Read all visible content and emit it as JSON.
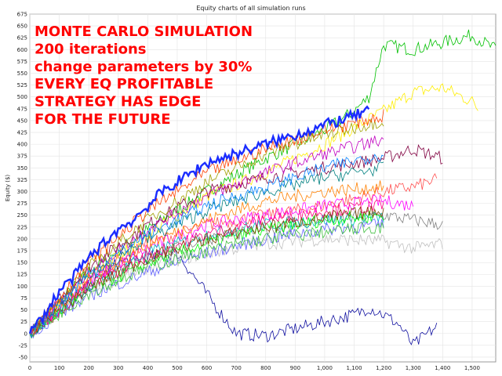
{
  "chart_data": {
    "type": "line",
    "title": "Equity charts of all simulation runs",
    "ylabel": "Equity ($)",
    "xlabel": "",
    "xlim": [
      0,
      1580
    ],
    "ylim": [
      -60,
      675
    ],
    "xticks": [
      0,
      100,
      200,
      300,
      400,
      500,
      600,
      700,
      800,
      900,
      1000,
      1100,
      1200,
      1300,
      1400,
      1500
    ],
    "xtick_labels": [
      "0",
      "100",
      "200",
      "300",
      "400",
      "500",
      "600",
      "700",
      "800",
      "900",
      "1,000",
      "1,100",
      "1,200",
      "1,300",
      "1,400",
      "1,500"
    ],
    "yticks": [
      -50,
      -25,
      0,
      25,
      50,
      75,
      100,
      125,
      150,
      175,
      200,
      225,
      250,
      275,
      300,
      325,
      350,
      375,
      400,
      425,
      450,
      475,
      500,
      525,
      550,
      575,
      600,
      625,
      650,
      675
    ],
    "grid": true,
    "legend": "none",
    "annotation_lines": [
      "MONTE CARLO SIMULATION",
      "200 iterations",
      "change parameters by 30%",
      "EVERY EQ PROFITABLE",
      "STRATEGY HAS EDGE",
      "FOR THE FUTURE"
    ],
    "annotation_color": "#ff0000",
    "highlight_series": {
      "color": "#1a2cff",
      "x": [
        0,
        50,
        100,
        150,
        200,
        250,
        300,
        350,
        400,
        450,
        500,
        550,
        600,
        650,
        700,
        750,
        800,
        850,
        900,
        950,
        1000,
        1050,
        1100,
        1150
      ],
      "values": [
        0,
        40,
        90,
        120,
        160,
        190,
        220,
        240,
        270,
        300,
        320,
        340,
        360,
        370,
        380,
        390,
        400,
        410,
        420,
        430,
        440,
        450,
        460,
        470
      ]
    },
    "series": [
      {
        "color": "#00c000",
        "x": [
          0,
          200,
          400,
          600,
          800,
          1000,
          1100,
          1150,
          1200,
          1300,
          1400,
          1500,
          1580
        ],
        "values": [
          0,
          130,
          220,
          300,
          370,
          430,
          470,
          500,
          610,
          600,
          615,
          630,
          600
        ]
      },
      {
        "color": "#ffee00",
        "x": [
          0,
          200,
          400,
          600,
          800,
          1000,
          1200,
          1300,
          1400,
          1500,
          1520
        ],
        "values": [
          0,
          120,
          210,
          290,
          340,
          400,
          470,
          510,
          520,
          490,
          475
        ]
      },
      {
        "color": "#1010a0",
        "x": [
          0,
          300,
          500,
          650,
          700,
          800,
          900,
          1000,
          1100,
          1150,
          1200,
          1250,
          1300,
          1380
        ],
        "values": [
          0,
          150,
          170,
          40,
          0,
          -5,
          10,
          25,
          40,
          55,
          40,
          20,
          -25,
          15
        ]
      },
      {
        "color": "#800040",
        "x": [
          0,
          200,
          400,
          600,
          800,
          1000,
          1200,
          1300,
          1400
        ],
        "values": [
          0,
          140,
          230,
          300,
          330,
          350,
          370,
          390,
          370
        ]
      },
      {
        "color": "#ff5050",
        "x": [
          0,
          200,
          400,
          600,
          800,
          1000,
          1200,
          1300,
          1380
        ],
        "values": [
          0,
          120,
          190,
          230,
          250,
          270,
          300,
          310,
          325
        ]
      },
      {
        "color": "#ff00ff",
        "x": [
          0,
          200,
          400,
          600,
          800,
          1000,
          1200,
          1300
        ],
        "values": [
          0,
          110,
          180,
          230,
          250,
          270,
          280,
          270
        ]
      },
      {
        "color": "#808080",
        "x": [
          0,
          200,
          400,
          600,
          800,
          1000,
          1200,
          1300,
          1400
        ],
        "values": [
          0,
          100,
          160,
          200,
          220,
          240,
          250,
          240,
          230
        ]
      },
      {
        "color": "#c0c0c0",
        "x": [
          0,
          200,
          400,
          600,
          800,
          1000,
          1200,
          1300,
          1400
        ],
        "values": [
          0,
          90,
          140,
          170,
          190,
          200,
          195,
          180,
          190
        ]
      },
      {
        "color": "#00c0c0",
        "x": [
          0,
          200,
          400,
          600,
          800,
          1000,
          1200
        ],
        "values": [
          0,
          100,
          170,
          210,
          230,
          240,
          245
        ]
      },
      {
        "color": "#ff8000",
        "x": [
          0,
          200,
          400,
          600,
          800,
          1000,
          1200
        ],
        "values": [
          0,
          110,
          190,
          240,
          280,
          300,
          310
        ]
      },
      {
        "color": "#00ff00",
        "x": [
          0,
          200,
          400,
          600,
          800,
          1000,
          1200
        ],
        "values": [
          0,
          90,
          150,
          190,
          220,
          240,
          250
        ]
      },
      {
        "color": "#c000c0",
        "x": [
          0,
          200,
          400,
          600,
          800,
          1000,
          1200
        ],
        "values": [
          0,
          130,
          220,
          290,
          340,
          380,
          410
        ]
      },
      {
        "color": "#6060ff",
        "x": [
          0,
          200,
          400,
          600,
          800,
          1000,
          1200
        ],
        "values": [
          0,
          80,
          130,
          170,
          200,
          220,
          230
        ]
      },
      {
        "color": "#a0a000",
        "x": [
          0,
          200,
          400,
          600,
          800,
          1000,
          1200
        ],
        "values": [
          0,
          140,
          240,
          320,
          380,
          420,
          450
        ]
      },
      {
        "color": "#ff0080",
        "x": [
          0,
          200,
          400,
          600,
          800,
          1000,
          1200
        ],
        "values": [
          0,
          100,
          165,
          210,
          240,
          260,
          270
        ]
      },
      {
        "color": "#008080",
        "x": [
          0,
          200,
          400,
          600,
          800,
          1000,
          1200
        ],
        "values": [
          0,
          120,
          200,
          260,
          300,
          330,
          350
        ]
      },
      {
        "color": "#804000",
        "x": [
          0,
          200,
          400,
          600,
          800,
          1000,
          1200
        ],
        "values": [
          0,
          95,
          160,
          200,
          225,
          245,
          260
        ]
      },
      {
        "color": "#0080ff",
        "x": [
          0,
          200,
          400,
          600,
          800,
          1000,
          1200
        ],
        "values": [
          0,
          125,
          210,
          270,
          310,
          350,
          380
        ]
      },
      {
        "color": "#ff4000",
        "x": [
          0,
          200,
          400,
          600,
          800,
          1000,
          1200
        ],
        "values": [
          0,
          150,
          260,
          340,
          390,
          430,
          460
        ]
      },
      {
        "color": "#40c040",
        "x": [
          0,
          200,
          400,
          600,
          800,
          1000,
          1200
        ],
        "values": [
          0,
          85,
          140,
          175,
          200,
          215,
          225
        ]
      }
    ]
  }
}
